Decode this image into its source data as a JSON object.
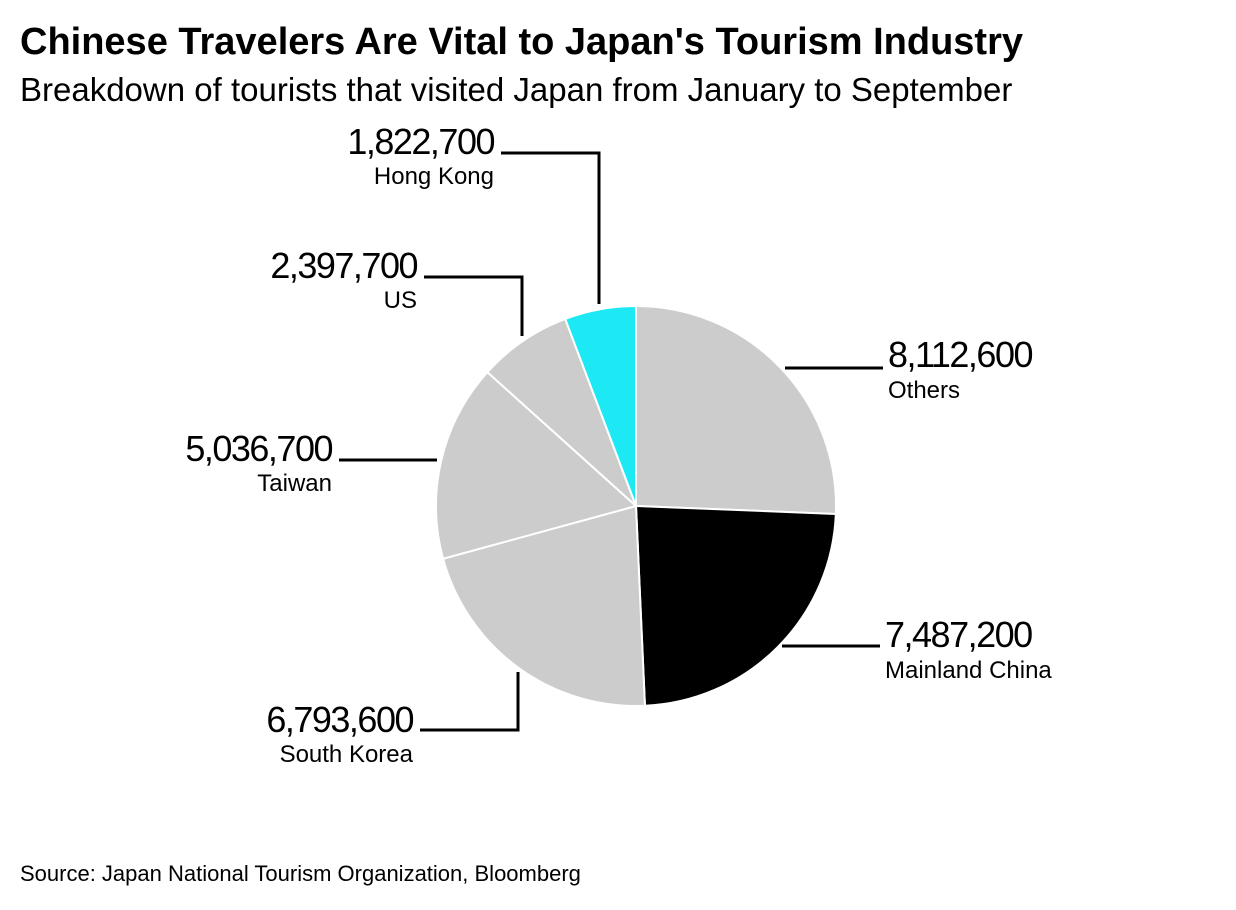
{
  "title": "Chinese Travelers Are Vital to Japan's Tourism Industry",
  "subtitle": "Breakdown of tourists that visited Japan from January to September",
  "source": "Source: Japan National Tourism Organization, Bloomberg",
  "chart_data": {
    "type": "pie",
    "start": "top, clockwise",
    "slices": [
      {
        "label": "Others",
        "value": 8112600,
        "value_text": "8,112,600",
        "color": "#cccccc"
      },
      {
        "label": "Mainland China",
        "value": 7487200,
        "value_text": "7,487,200",
        "color": "#000000"
      },
      {
        "label": "South Korea",
        "value": 6793600,
        "value_text": "6,793,600",
        "color": "#cccccc"
      },
      {
        "label": "Taiwan",
        "value": 5036700,
        "value_text": "5,036,700",
        "color": "#cccccc"
      },
      {
        "label": "US",
        "value": 2397700,
        "value_text": "2,397,700",
        "color": "#cccccc"
      },
      {
        "label": "Hong Kong",
        "value": 1822700,
        "value_text": "1,822,700",
        "color": "#1de9f5"
      }
    ]
  }
}
